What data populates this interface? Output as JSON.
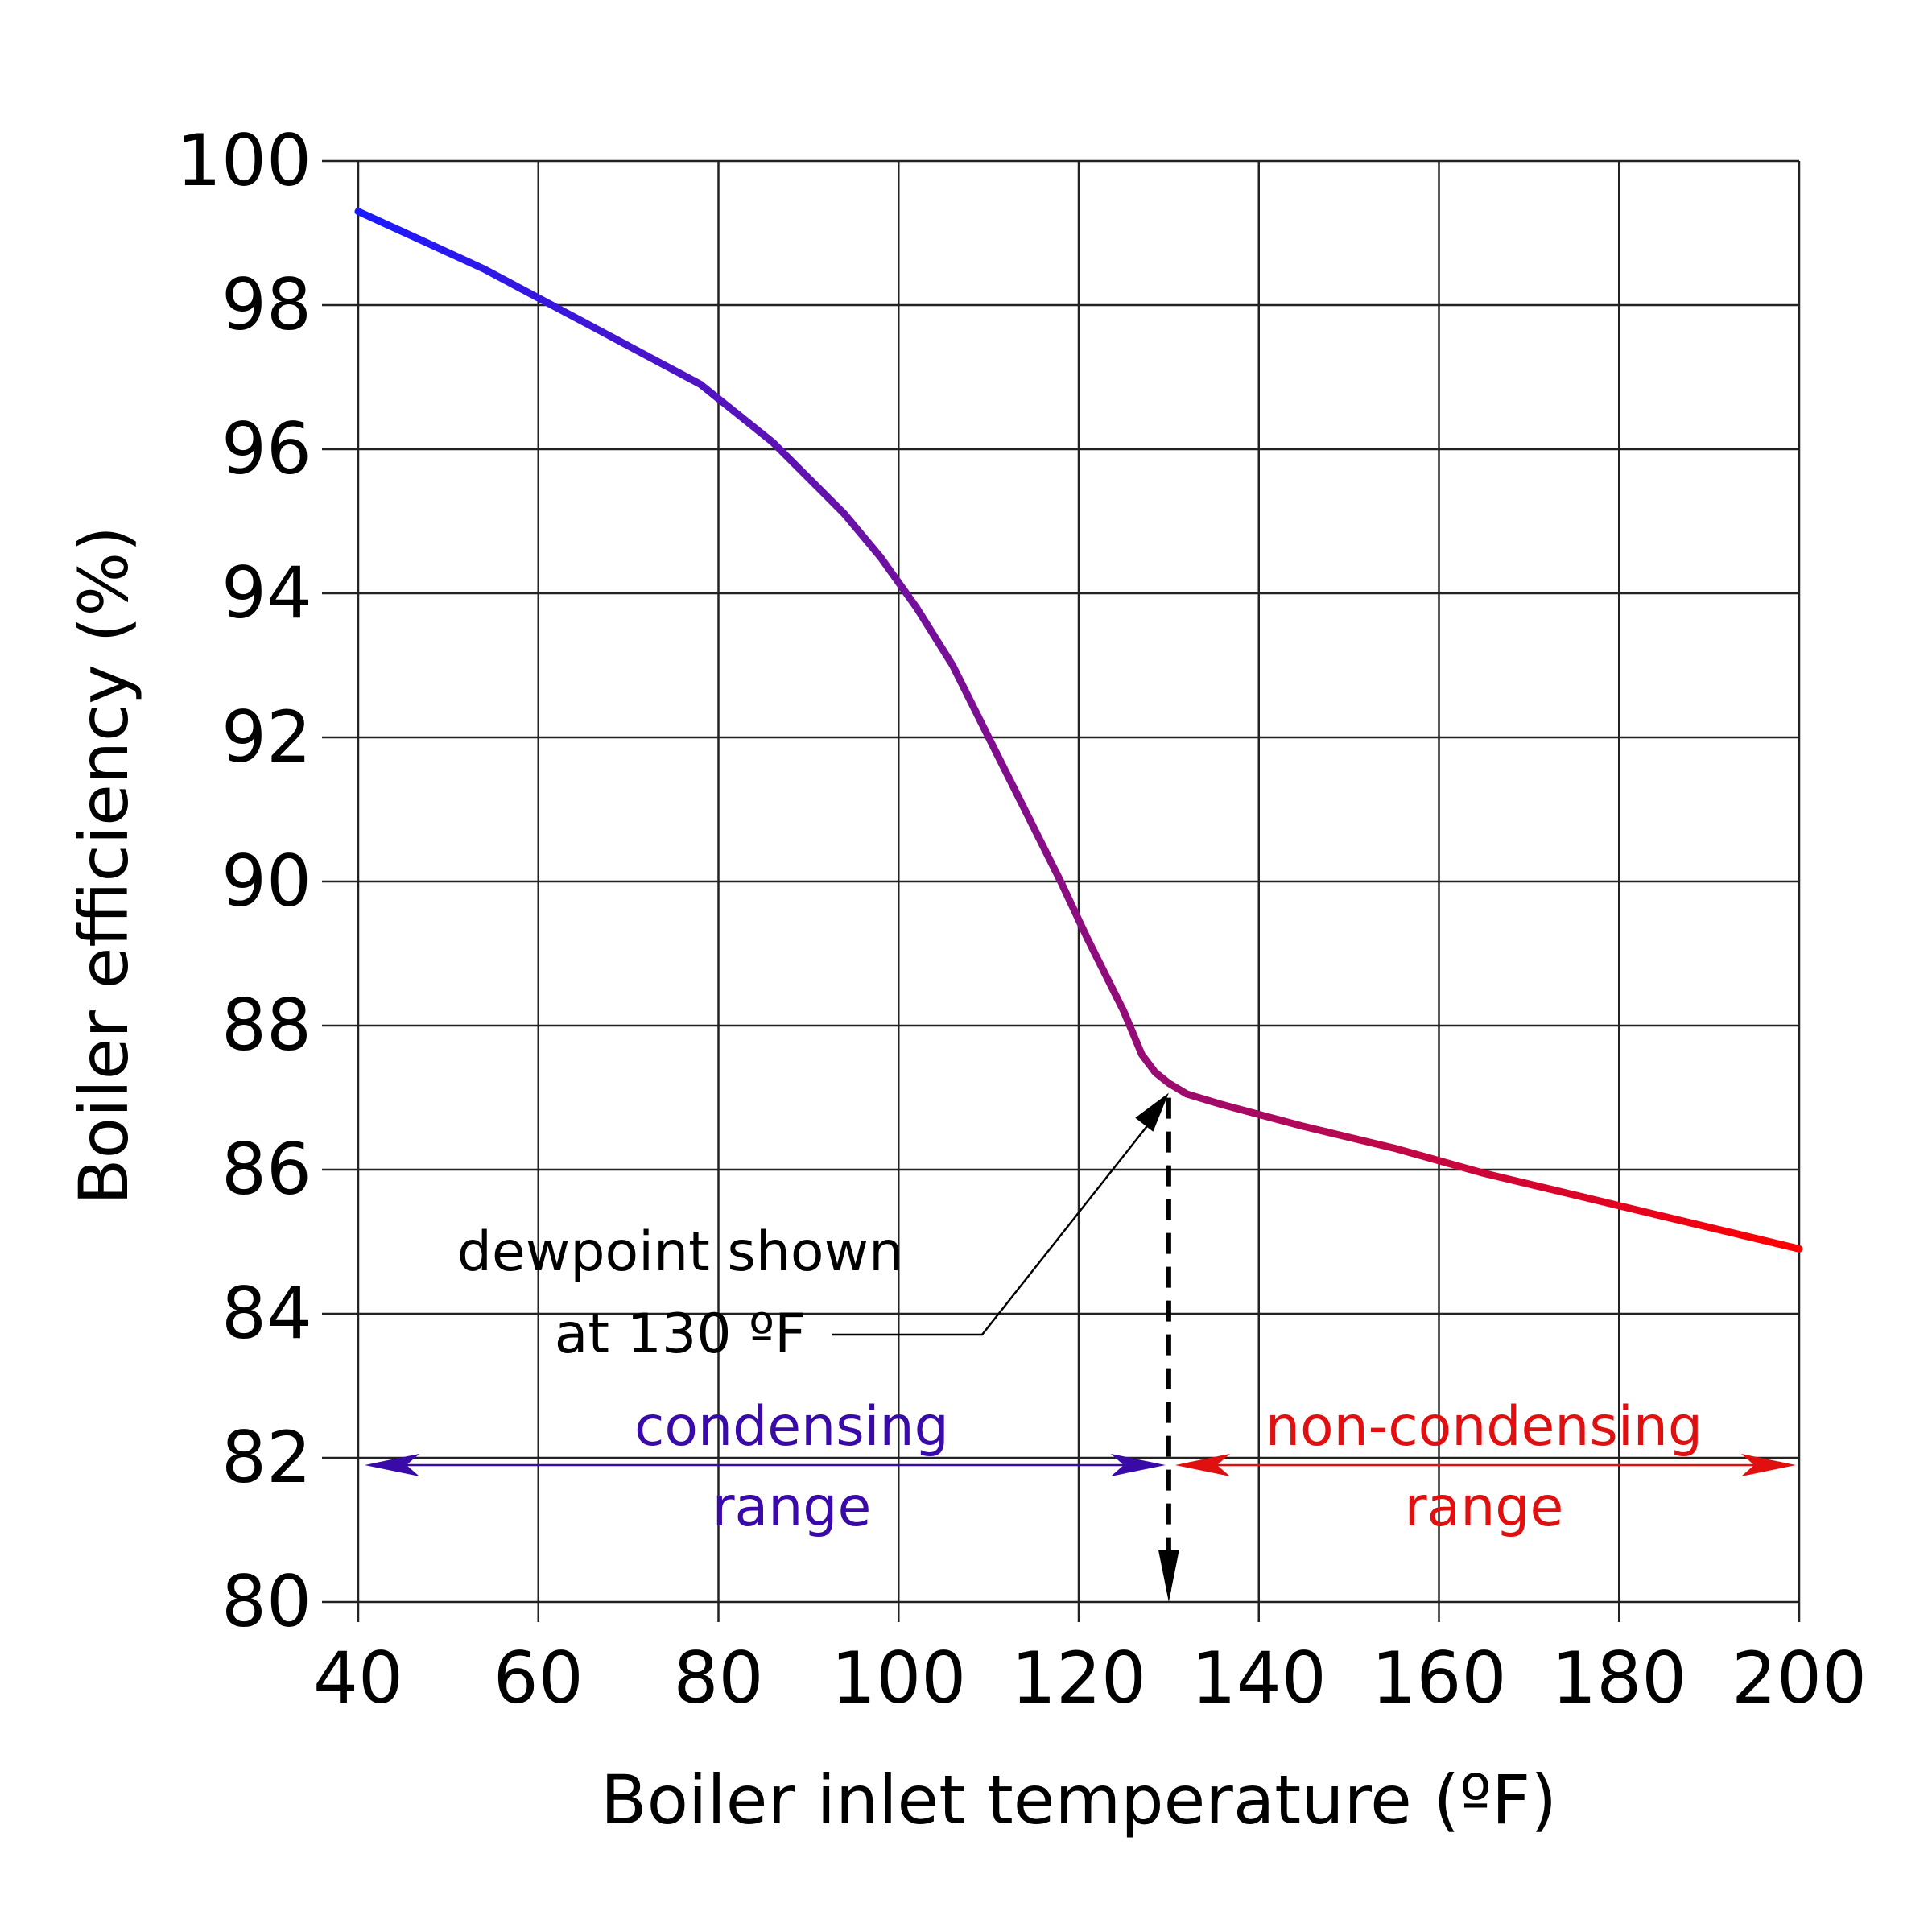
{
  "chart_data": {
    "type": "line",
    "xlabel": "Boiler inlet temperature (ºF)",
    "ylabel": "Boiler efficiency (%)",
    "xlim": [
      40,
      200
    ],
    "ylim": [
      80,
      100
    ],
    "x_ticks": [
      40,
      60,
      80,
      100,
      120,
      140,
      160,
      180,
      200
    ],
    "y_ticks": [
      80,
      82,
      84,
      86,
      88,
      90,
      92,
      94,
      96,
      98,
      100
    ],
    "grid": true,
    "series": [
      {
        "color_start": "#1a1aff",
        "color_end": "#ff0000",
        "x": [
          40,
          47,
          54,
          60,
          66,
          72,
          78,
          82,
          86,
          90,
          94,
          98,
          102,
          106,
          110,
          114,
          118,
          121,
          125,
          127,
          128.5,
          130,
          132,
          136,
          145,
          155,
          165,
          175,
          185,
          195,
          200
        ],
        "y": [
          99.3,
          98.9,
          98.5,
          98.1,
          97.7,
          97.3,
          96.9,
          96.5,
          96.1,
          95.6,
          95.1,
          94.5,
          93.8,
          93.0,
          92.0,
          91.0,
          90.0,
          89.2,
          88.2,
          87.6,
          87.35,
          87.2,
          87.05,
          86.9,
          86.6,
          86.3,
          85.95,
          85.65,
          85.35,
          85.05,
          84.9
        ]
      }
    ],
    "annotations": [
      {
        "line1": "dewpoint shown",
        "line2": "at 130 ºF",
        "x": 130,
        "y": 87.2
      }
    ],
    "dewpoint_x": 130,
    "ranges": [
      {
        "line1": "condensing",
        "line2": "range",
        "x_from": 40,
        "x_to": 130,
        "y": 81.9,
        "color": "#3a0aa8"
      },
      {
        "line1": "non-condensing",
        "line2": "range",
        "x_from": 130,
        "x_to": 200,
        "y": 81.9,
        "color": "#e01010"
      }
    ]
  }
}
